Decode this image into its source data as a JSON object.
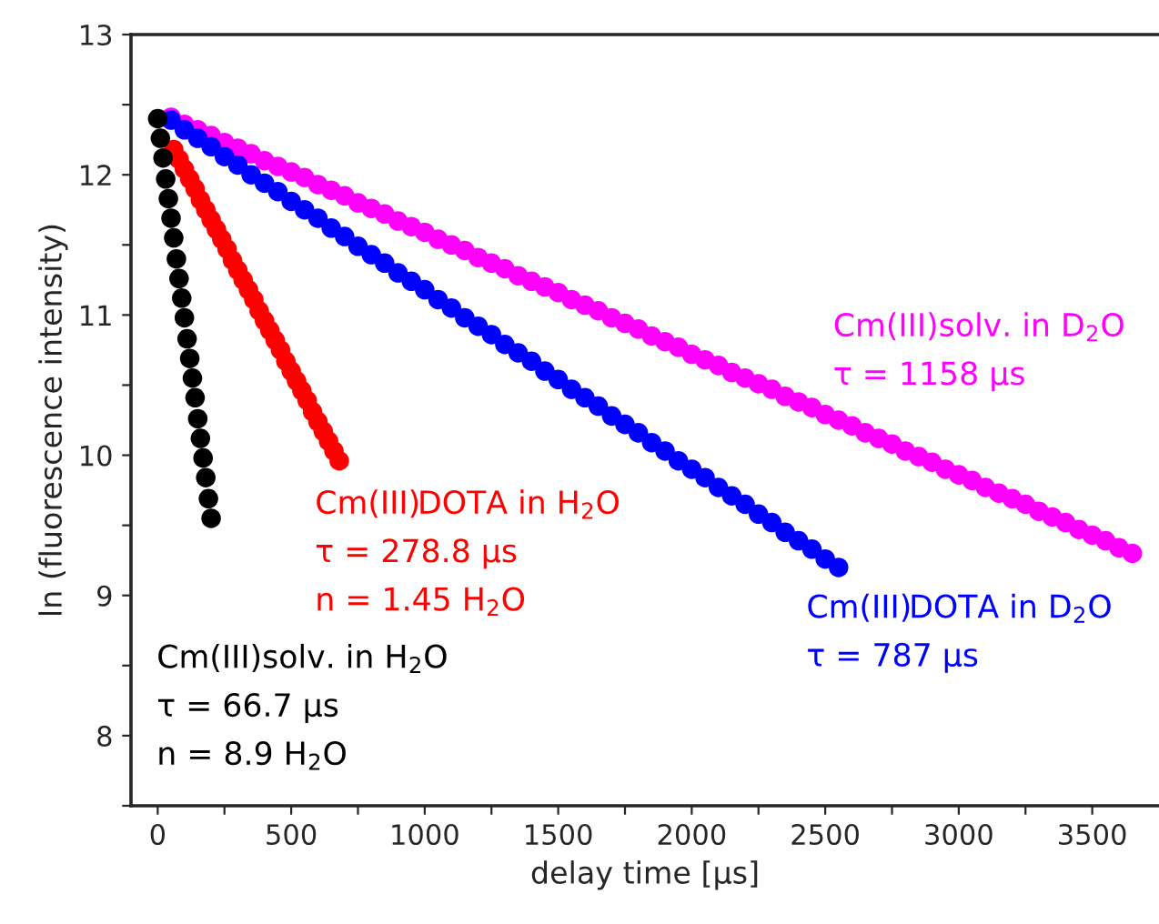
{
  "chart_data": {
    "type": "scatter",
    "xlabel": "delay time [µs]",
    "ylabel": "ln (fluorescence intensity)",
    "xlim": [
      -100,
      3750
    ],
    "ylim": [
      7.5,
      13
    ],
    "xticks": [
      0,
      {
        "value": 250,
        "label": null
      },
      500,
      {
        "value": 750,
        "label": null
      },
      1000,
      {
        "value": 1250,
        "label": null
      },
      1500,
      {
        "value": 1750,
        "label": null
      },
      2000,
      {
        "value": 2250,
        "label": null
      },
      2500,
      {
        "value": 2750,
        "label": null
      },
      3000,
      {
        "value": 3250,
        "label": null
      },
      3500
    ],
    "yticks": [
      {
        "value": 7.5,
        "label": null
      },
      8,
      {
        "value": 8.5,
        "label": null
      },
      9,
      {
        "value": 9.5,
        "label": null
      },
      10,
      {
        "value": 10.5,
        "label": null
      },
      11,
      {
        "value": 11.5,
        "label": null
      },
      12,
      {
        "value": 12.5,
        "label": null
      },
      13
    ],
    "marker": "circle",
    "grid": false,
    "legend": false,
    "series": [
      {
        "color": "#ff00ff",
        "x": [
          50,
          100,
          150,
          200,
          250,
          300,
          350,
          400,
          450,
          500,
          550,
          600,
          650,
          700,
          750,
          800,
          850,
          900,
          950,
          1000,
          1050,
          1100,
          1150,
          1200,
          1250,
          1300,
          1350,
          1400,
          1450,
          1500,
          1550,
          1600,
          1650,
          1700,
          1750,
          1800,
          1850,
          1900,
          1950,
          2000,
          2050,
          2100,
          2150,
          2200,
          2250,
          2300,
          2350,
          2400,
          2450,
          2500,
          2550,
          2600,
          2650,
          2700,
          2750,
          2800,
          2850,
          2900,
          2950,
          3000,
          3050,
          3100,
          3150,
          3200,
          3250,
          3300,
          3350,
          3400,
          3450,
          3500,
          3550,
          3600,
          3650
        ],
        "values": [
          12.41,
          12.36,
          12.32,
          12.28,
          12.23,
          12.19,
          12.15,
          12.1,
          12.06,
          12.02,
          11.98,
          11.93,
          11.89,
          11.85,
          11.8,
          11.76,
          11.72,
          11.67,
          11.63,
          11.59,
          11.54,
          11.5,
          11.46,
          11.41,
          11.37,
          11.33,
          11.28,
          11.24,
          11.2,
          11.16,
          11.11,
          11.07,
          11.03,
          10.98,
          10.94,
          10.9,
          10.85,
          10.81,
          10.77,
          10.72,
          10.68,
          10.64,
          10.59,
          10.55,
          10.51,
          10.47,
          10.42,
          10.38,
          10.34,
          10.29,
          10.25,
          10.21,
          10.16,
          10.12,
          10.08,
          10.03,
          9.99,
          9.95,
          9.9,
          9.86,
          9.82,
          9.77,
          9.73,
          9.69,
          9.65,
          9.6,
          9.56,
          9.52,
          9.47,
          9.43,
          9.39,
          9.34,
          9.3
        ]
      },
      {
        "color": "#0000ff",
        "x": [
          50,
          100,
          150,
          200,
          250,
          300,
          350,
          400,
          450,
          500,
          550,
          600,
          650,
          700,
          750,
          800,
          850,
          900,
          950,
          1000,
          1050,
          1100,
          1150,
          1200,
          1250,
          1300,
          1350,
          1400,
          1450,
          1500,
          1550,
          1600,
          1650,
          1700,
          1750,
          1800,
          1850,
          1900,
          1950,
          2000,
          2050,
          2100,
          2150,
          2200,
          2250,
          2300,
          2350,
          2400,
          2450,
          2500,
          2550
        ],
        "values": [
          12.39,
          12.32,
          12.26,
          12.2,
          12.13,
          12.07,
          12.0,
          11.94,
          11.88,
          11.81,
          11.75,
          11.69,
          11.62,
          11.56,
          11.49,
          11.43,
          11.37,
          11.3,
          11.24,
          11.18,
          11.11,
          11.05,
          10.98,
          10.92,
          10.86,
          10.79,
          10.73,
          10.67,
          10.6,
          10.54,
          10.47,
          10.41,
          10.35,
          10.28,
          10.22,
          10.16,
          10.09,
          10.03,
          9.96,
          9.9,
          9.84,
          9.77,
          9.71,
          9.65,
          9.58,
          9.52,
          9.45,
          9.39,
          9.33,
          9.26,
          9.2
        ]
      },
      {
        "color": "#ff0000",
        "x": [
          60,
          80,
          100,
          120,
          140,
          160,
          180,
          200,
          220,
          240,
          260,
          280,
          300,
          320,
          340,
          360,
          380,
          400,
          420,
          440,
          460,
          480,
          500,
          520,
          540,
          560,
          580,
          600,
          620,
          640,
          660,
          680
        ],
        "values": [
          12.18,
          12.11,
          12.04,
          11.97,
          11.9,
          11.82,
          11.75,
          11.68,
          11.61,
          11.54,
          11.47,
          11.39,
          11.32,
          11.25,
          11.18,
          11.11,
          11.03,
          10.96,
          10.89,
          10.82,
          10.75,
          10.67,
          10.6,
          10.53,
          10.46,
          10.39,
          10.31,
          10.24,
          10.17,
          10.1,
          10.03,
          9.96
        ]
      },
      {
        "color": "#000000",
        "x": [
          0,
          10,
          20,
          30,
          40,
          50,
          60,
          70,
          80,
          90,
          100,
          110,
          120,
          130,
          140,
          150,
          160,
          170,
          180,
          190,
          200
        ],
        "values": [
          12.4,
          12.26,
          12.12,
          11.97,
          11.83,
          11.69,
          11.55,
          11.4,
          11.26,
          11.12,
          10.98,
          10.83,
          10.69,
          10.55,
          10.41,
          10.26,
          10.12,
          9.98,
          9.84,
          9.69,
          9.55
        ]
      }
    ],
    "annotations": [
      "Cm(III)solv. in D$_{2}$O\nτ = 1158 µs",
      "Cm(III)DOTA in D$_{2}$O\nτ = 787 µs",
      "Cm(III)DOTA in H$_{2}$O\nτ = 278.8 µs\nn = 1.45 H$_{2}$O",
      "Cm(III)solv. in H$_{2}$O\nτ = 66.7 µs\nn = 8.9 H$_{2}$O"
    ]
  }
}
